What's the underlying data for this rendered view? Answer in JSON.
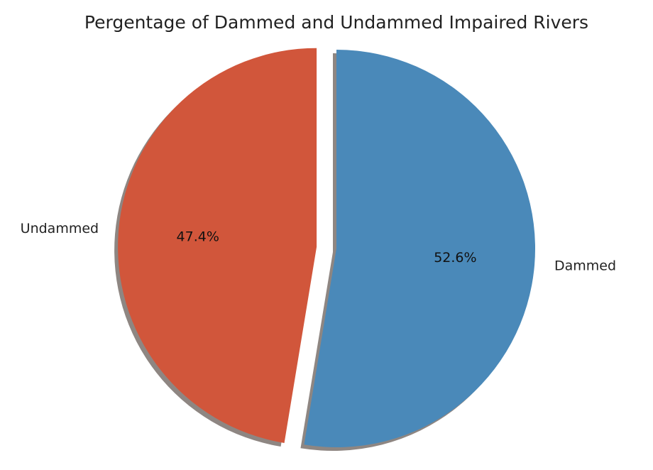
{
  "chart_data": {
    "type": "pie",
    "title": "Pergentage of Dammed and Undammed Impaired Rivers",
    "slices": [
      {
        "label": "Dammed",
        "value": 52.6,
        "pct_label": "52.6%",
        "color": "#4a89b9",
        "explode": 0
      },
      {
        "label": "Undammed",
        "value": 47.4,
        "pct_label": "47.4%",
        "color": "#d1563b",
        "explode": 0.1
      }
    ],
    "start_angle_deg": 90,
    "direction": "clockwise",
    "shadow": true,
    "shadow_color": "#8e8682"
  }
}
